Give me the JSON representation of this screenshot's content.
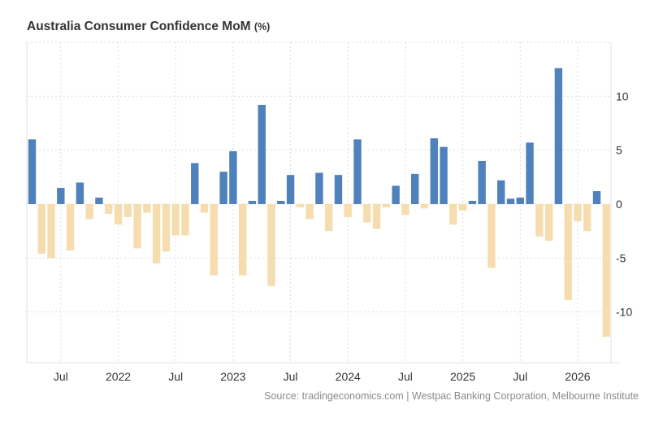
{
  "chart_data": {
    "type": "bar",
    "title": "Australia Consumer Confidence MoM",
    "unit": "(%)",
    "source": "Source: tradingeconomics.com | Westpac Banking Corporation, Melbourne Institute",
    "categories": [
      "2021-04",
      "2021-05",
      "2021-06",
      "2021-07",
      "2021-08",
      "2021-09",
      "2021-10",
      "2021-11",
      "2021-12",
      "2022-01",
      "2022-02",
      "2022-03",
      "2022-04",
      "2022-05",
      "2022-06",
      "2022-07",
      "2022-08",
      "2022-09",
      "2022-10",
      "2022-11",
      "2022-12",
      "2023-01",
      "2023-02",
      "2023-03",
      "2023-04",
      "2023-05",
      "2023-06",
      "2023-07",
      "2023-08",
      "2023-09",
      "2023-10",
      "2023-11",
      "2023-12",
      "2024-01",
      "2024-02",
      "2024-03",
      "2024-04",
      "2024-05",
      "2024-06",
      "2024-07",
      "2024-08",
      "2024-09",
      "2024-10",
      "2024-11",
      "2024-12",
      "2025-01",
      "2025-02",
      "2025-03",
      "2025-04",
      "2025-05",
      "2025-06",
      "2025-07",
      "2025-08",
      "2025-09",
      "2025-10",
      "2025-11",
      "2025-12",
      "2026-01",
      "2026-02",
      "2026-03",
      "2026-04"
    ],
    "values": [
      6.0,
      -4.6,
      -5.0,
      1.5,
      -4.3,
      2.0,
      -1.4,
      0.6,
      -0.9,
      -1.9,
      -1.2,
      -4.1,
      -0.8,
      -5.5,
      -4.4,
      -2.9,
      -2.9,
      3.8,
      -0.8,
      -6.6,
      3.0,
      4.9,
      -6.6,
      0.3,
      9.2,
      -7.6,
      0.3,
      2.7,
      -0.3,
      -1.4,
      2.9,
      -2.5,
      2.7,
      -1.2,
      6.0,
      -1.7,
      -2.3,
      -0.3,
      1.7,
      -1.0,
      2.8,
      -0.4,
      6.1,
      5.3,
      -1.9,
      -0.6,
      0.3,
      4.0,
      -5.9,
      2.2,
      0.5,
      0.6,
      5.7,
      -3.0,
      -3.4,
      12.6,
      -8.9,
      -1.6,
      -2.5,
      1.2,
      -12.3
    ],
    "x_tick_labels": [
      {
        "month": "2021-07",
        "label": "Jul"
      },
      {
        "month": "2022-01",
        "label": "2022"
      },
      {
        "month": "2022-07",
        "label": "Jul"
      },
      {
        "month": "2023-01",
        "label": "2023"
      },
      {
        "month": "2023-07",
        "label": "Jul"
      },
      {
        "month": "2024-01",
        "label": "2024"
      },
      {
        "month": "2024-07",
        "label": "Jul"
      },
      {
        "month": "2025-01",
        "label": "2025"
      },
      {
        "month": "2025-07",
        "label": "Jul"
      },
      {
        "month": "2026-01",
        "label": "2026"
      }
    ],
    "y_ticks": [
      10,
      5,
      0,
      -5,
      -10
    ],
    "ylim": [
      -14.7,
      15
    ],
    "y_axis_position": "right",
    "grid": true,
    "legend": "none",
    "colors": {
      "positive": "#4f81bd",
      "negative": "#f5ddb0",
      "grid": "#dddddd",
      "axis": "#e0e0e0"
    }
  }
}
